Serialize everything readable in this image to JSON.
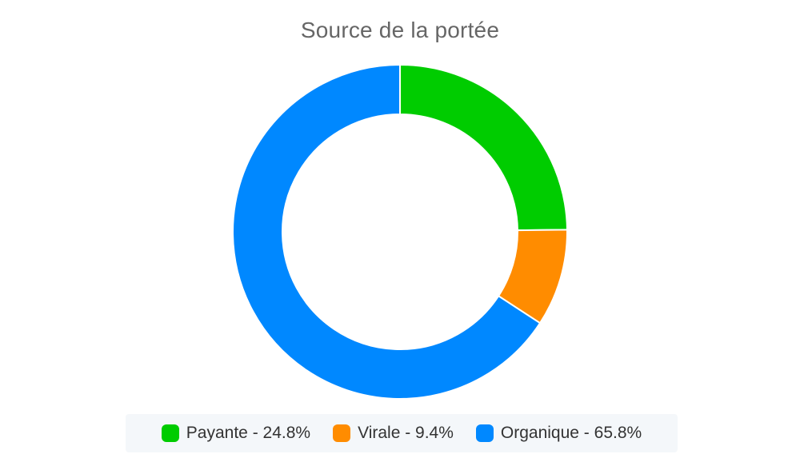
{
  "chart_data": {
    "type": "pie",
    "style": "donut",
    "title": "Source de la portée",
    "categories": [
      "Payante",
      "Virale",
      "Organique"
    ],
    "values": [
      24.8,
      9.4,
      65.8
    ],
    "unit": "%",
    "colors": [
      "#00cc00",
      "#ff8c00",
      "#0088ff"
    ],
    "legend": {
      "placement": "bottom",
      "items": [
        {
          "label": "Payante - 24.8%",
          "color": "#00cc00"
        },
        {
          "label": "Virale - 9.4%",
          "color": "#ff8c00"
        },
        {
          "label": "Organique - 65.8%",
          "color": "#0088ff"
        }
      ]
    }
  }
}
